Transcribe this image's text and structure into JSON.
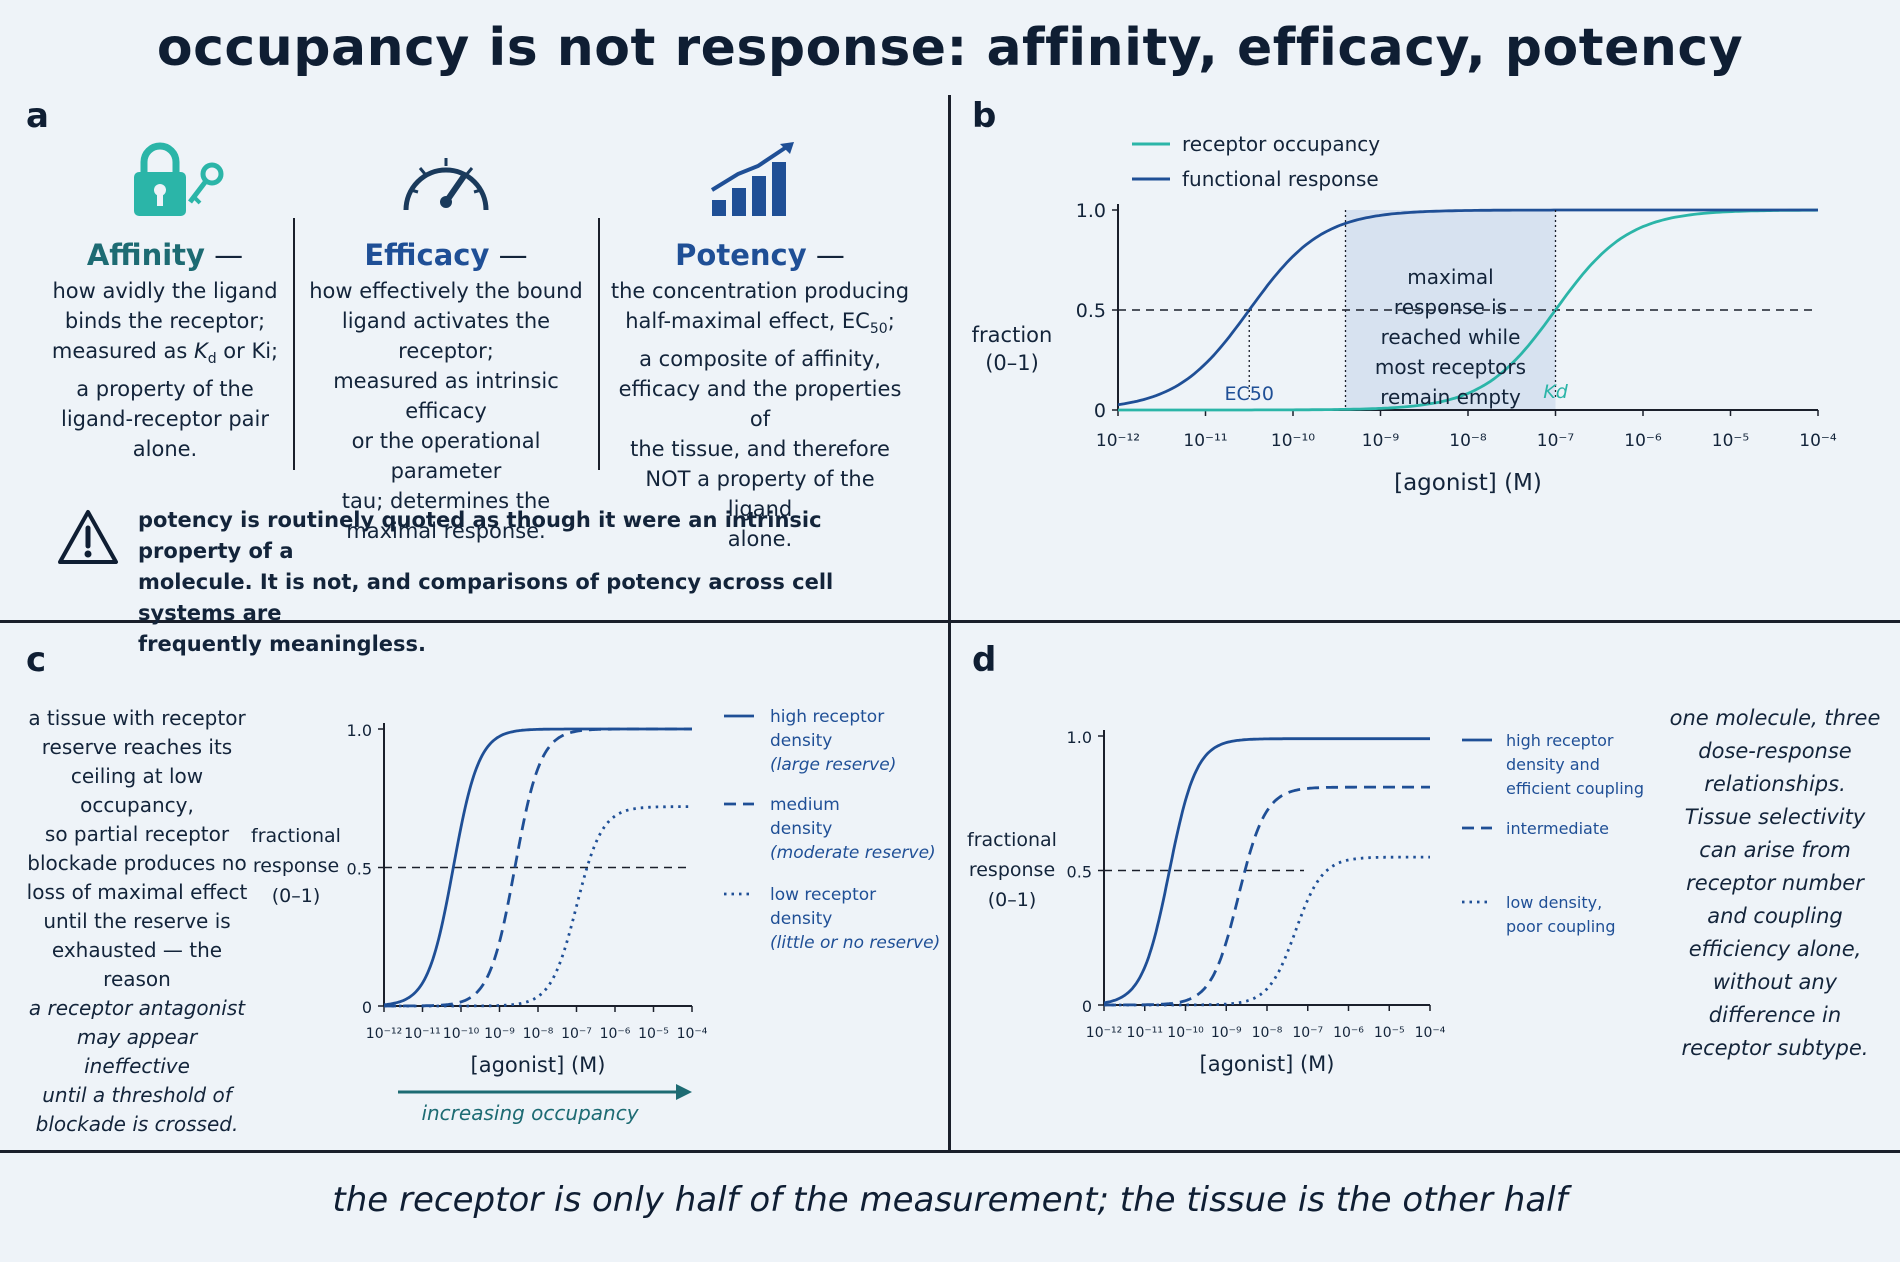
{
  "title": "occupancy is not response: affinity, efficacy, potency",
  "panels": {
    "a": {
      "letter": "a",
      "affinity": {
        "head": "Affinity",
        "dash": " —",
        "lines": [
          "how avidly the ligand",
          "binds the receptor;",
          "measured as Kd or Ki;",
          "a property of the",
          "ligand-receptor pair",
          "alone."
        ]
      },
      "efficacy": {
        "head": "Efficacy",
        "dash": " —",
        "lines": [
          "how effectively the bound",
          "ligand activates the receptor;",
          "measured as intrinsic efficacy",
          "or the operational parameter",
          "tau; determines the",
          "maximal response."
        ]
      },
      "potency": {
        "head": "Potency",
        "dash": " —",
        "lines": [
          "the concentration producing",
          "half-maximal effect, EC50;",
          "a composite of affinity,",
          "efficacy and the properties of",
          "the tissue, and therefore",
          "NOT a property of the ligand",
          "alone."
        ]
      },
      "warning_lines": [
        "potency is routinely quoted as though it were an intrinsic property of a",
        "molecule. It is not, and comparisons of potency across cell systems are",
        "frequently meaningless."
      ],
      "icons": [
        "lock-key-icon",
        "gauge-icon",
        "rising-bars-icon",
        "warning-icon"
      ]
    },
    "b": {
      "letter": "b"
    },
    "c": {
      "letter": "c",
      "side_lines": [
        "a tissue with receptor",
        "reserve reaches its",
        "ceiling at low occupancy,",
        "so partial receptor",
        "blockade produces no",
        "loss of maximal effect",
        "until the reserve is",
        "exhausted — the reason",
        "a receptor antagonist",
        "may appear ineffective",
        "until a threshold of",
        "blockade is crossed."
      ],
      "arrow_label": "increasing occupancy"
    },
    "d": {
      "letter": "d",
      "side_lines": [
        "one molecule, three",
        "dose-response",
        "relationships.",
        "Tissue selectivity",
        "can arise from",
        "receptor number",
        "and coupling",
        "efficiency alone,",
        "without any",
        "difference in",
        "receptor subtype."
      ]
    }
  },
  "colors": {
    "dark_blue": "#1f4f96",
    "teal": "#2bb5a8",
    "navy": "#0f1e33",
    "shade": "#cfdcee"
  },
  "chart_data": [
    {
      "panel": "b",
      "type": "line",
      "xscale": "log",
      "xlim": [
        -12,
        -4
      ],
      "ylim": [
        0,
        1
      ],
      "xticks": [
        "10⁻¹²",
        "10⁻¹¹",
        "10⁻¹⁰",
        "10⁻⁹",
        "10⁻⁸",
        "10⁻⁷",
        "10⁻⁶",
        "10⁻⁵",
        "10⁻⁴"
      ],
      "yticks": [
        "0",
        "0.5",
        "1.0"
      ],
      "xlabel": "[agonist] (M)",
      "ylabel_lines": [
        "fraction",
        "(0–1)"
      ],
      "series": [
        {
          "name": "receptor occupancy",
          "color": "#2bb5a8",
          "style": "solid",
          "midpoint": -7.0,
          "max": 1.0
        },
        {
          "name": "functional response",
          "color": "#1f4f96",
          "style": "solid",
          "midpoint": -10.5,
          "max": 1.0
        }
      ],
      "annotations": {
        "ec50_label": "EC50",
        "ec50_x": -10.5,
        "kd_label": "Kd",
        "kd_x": -7.0,
        "half_line": 0.5,
        "shade_from": -9.4,
        "shade_to": -7.0,
        "shade_text": [
          "maximal",
          "response is",
          "reached while",
          "most receptors",
          "remain empty"
        ]
      }
    },
    {
      "panel": "c",
      "type": "line",
      "xscale": "log",
      "xlim": [
        -12,
        -4
      ],
      "ylim": [
        0,
        1
      ],
      "xticks": [
        "10⁻¹²",
        "10⁻¹¹",
        "10⁻¹⁰",
        "10⁻⁹",
        "10⁻⁸",
        "10⁻⁷",
        "10⁻⁶",
        "10⁻⁵",
        "10⁻⁴"
      ],
      "yticks": [
        "0",
        "0.5",
        "1.0"
      ],
      "xlabel": "[agonist] (M)",
      "ylabel_lines": [
        "fractional",
        "response",
        "(0–1)"
      ],
      "series": [
        {
          "legend_lines": [
            "high receptor",
            "density",
            "(large reserve)"
          ],
          "style": "solid",
          "midpoint": -10.2,
          "max": 1.0
        },
        {
          "legend_lines": [
            "medium",
            "density",
            "(moderate reserve)"
          ],
          "style": "dashed",
          "midpoint": -8.6,
          "max": 1.0
        },
        {
          "legend_lines": [
            "low receptor",
            "density",
            "(little or no reserve)"
          ],
          "style": "dotted",
          "midpoint": -7.0,
          "max": 0.72
        }
      ],
      "half_line": 0.5
    },
    {
      "panel": "d",
      "type": "line",
      "xscale": "log",
      "xlim": [
        -12,
        -4
      ],
      "ylim": [
        0,
        1
      ],
      "xticks": [
        "10⁻¹²",
        "10⁻¹¹",
        "10⁻¹⁰",
        "10⁻⁹",
        "10⁻⁸",
        "10⁻⁷",
        "10⁻⁶",
        "10⁻⁵",
        "10⁻⁴"
      ],
      "yticks": [
        "0",
        "0.5",
        "1.0"
      ],
      "xlabel": "[agonist] (M)",
      "ylabel_lines": [
        "fractional",
        "response",
        "(0–1)"
      ],
      "series": [
        {
          "legend_lines": [
            "high receptor",
            "density and",
            "efficient coupling"
          ],
          "style": "solid",
          "midpoint": -10.4,
          "max": 0.99
        },
        {
          "legend_lines": [
            "intermediate"
          ],
          "style": "dashed",
          "midpoint": -8.7,
          "max": 0.81
        },
        {
          "legend_lines": [
            "low density,",
            "poor coupling"
          ],
          "style": "dotted",
          "midpoint": -7.3,
          "max": 0.55
        }
      ],
      "half_line": 0.5
    }
  ],
  "footer": "the receptor is only half of the measurement; the tissue is the other half"
}
